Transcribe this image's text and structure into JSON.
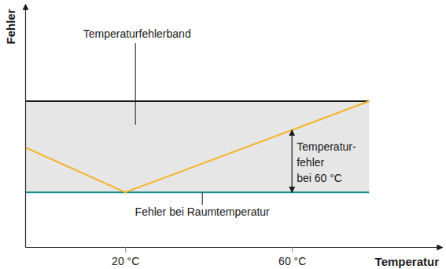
{
  "chart_data": {
    "type": "line",
    "x_label": "Temperatur",
    "y_label": "Fehler",
    "xlim": [
      -4,
      96
    ],
    "ylim": [
      0,
      100
    ],
    "xticks": [
      {
        "value": 20,
        "label": "20 °C"
      },
      {
        "value": 60,
        "label": "60 °C"
      }
    ],
    "yticks": [],
    "tick_labels": "x",
    "x": [
      -4,
      20,
      78.5
    ],
    "series": [
      {
        "name": "Temperaturfehlerband",
        "color": "#1a1a1a",
        "values": [
          60,
          60,
          60
        ]
      },
      {
        "name": "Fehler bei Raumtemperatur",
        "color": "#178f8f",
        "values": [
          22.5,
          22.5,
          22.5
        ]
      },
      {
        "color": "#f5b323",
        "values": [
          41,
          22.5,
          60
        ]
      }
    ],
    "annotations": [
      {
        "text": [
          "Temperatur-",
          "fehler",
          "bei 60 °C"
        ],
        "x": 60,
        "y": [
          22.5,
          48.1
        ]
      }
    ]
  }
}
